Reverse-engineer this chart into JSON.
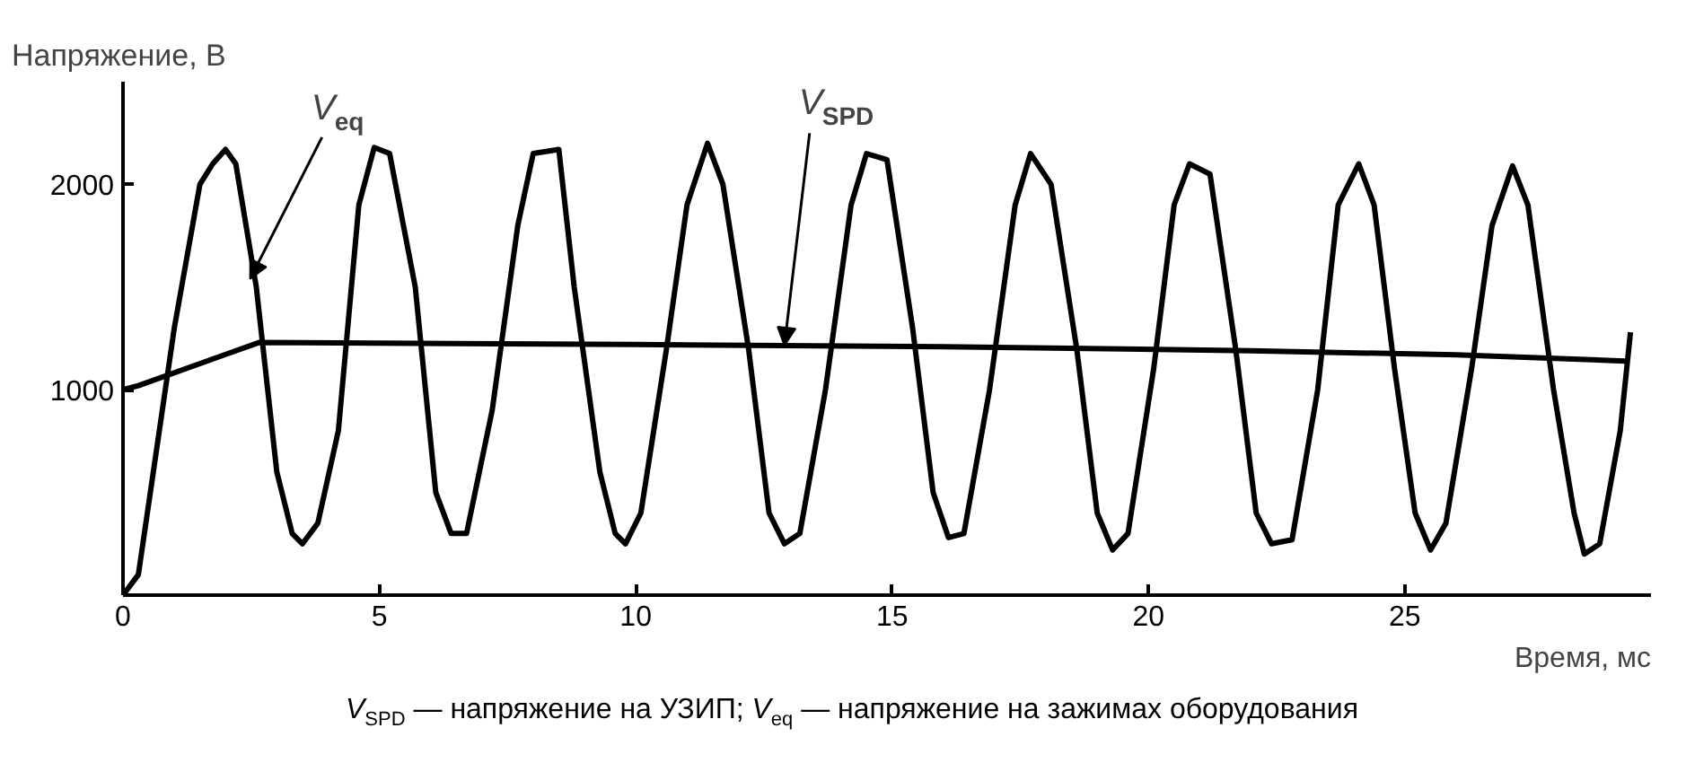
{
  "chart_data": {
    "type": "line",
    "ylabel": "Напряжение, В",
    "xlabel": "Время, мс",
    "xlim": [
      0,
      29.8
    ],
    "ylim": [
      0,
      2500
    ],
    "xticks": [
      0,
      5,
      10,
      15,
      20,
      25
    ],
    "yticks": [
      1000,
      2000
    ],
    "grid": false,
    "marker": "none",
    "line_style": "solid",
    "series": [
      {
        "color": "#000000",
        "x": [
          0,
          0.3,
          1.0,
          1.5,
          1.75,
          2.0,
          2.2,
          2.6,
          3.0,
          3.3,
          3.5,
          3.8,
          4.2,
          4.6,
          4.9,
          5.2,
          5.7,
          6.1,
          6.4,
          6.7,
          7.2,
          7.7,
          8.0,
          8.5,
          8.8,
          9.3,
          9.6,
          9.8,
          10.1,
          10.6,
          11.0,
          11.4,
          11.7,
          12.2,
          12.6,
          12.9,
          13.2,
          13.7,
          14.2,
          14.5,
          14.9,
          15.4,
          15.8,
          16.1,
          16.4,
          16.9,
          17.4,
          17.7,
          18.1,
          18.6,
          19.0,
          19.3,
          19.6,
          20.1,
          20.5,
          20.8,
          21.2,
          21.7,
          22.1,
          22.4,
          22.8,
          23.3,
          23.7,
          24.1,
          24.4,
          24.8,
          25.2,
          25.5,
          25.8,
          26.3,
          26.7,
          27.1,
          27.4,
          27.9,
          28.3,
          28.5,
          28.8,
          29.2,
          29.4
        ],
        "values": [
          0,
          100,
          1300,
          2000,
          2100,
          2170,
          2100,
          1500,
          600,
          300,
          250,
          350,
          800,
          1900,
          2180,
          2150,
          1500,
          500,
          300,
          300,
          900,
          1800,
          2150,
          2170,
          1500,
          600,
          300,
          250,
          400,
          1200,
          1900,
          2200,
          2000,
          1200,
          400,
          250,
          300,
          1000,
          1900,
          2150,
          2120,
          1300,
          500,
          280,
          300,
          1000,
          1900,
          2150,
          2000,
          1200,
          400,
          220,
          300,
          1100,
          1900,
          2100,
          2050,
          1200,
          400,
          250,
          270,
          1000,
          1900,
          2100,
          1900,
          1100,
          400,
          220,
          350,
          1100,
          1800,
          2090,
          1900,
          1000,
          400,
          200,
          250,
          800,
          1280
        ]
      },
      {
        "color": "#000000",
        "x": [
          0,
          0.3,
          2.65,
          10,
          16,
          22,
          26,
          29.3
        ],
        "values": [
          1000,
          1020,
          1230,
          1220,
          1210,
          1190,
          1170,
          1140
        ]
      }
    ],
    "annotations": [
      {
        "text": "V$_{eq}$",
        "x": 2.48,
        "y": 1540
      },
      {
        "text": "V$_{SPD}$",
        "x": 12.9,
        "y": 1215
      },
      "V$_{SPD}$ — напряжение на УЗИП;  V$_{eq}$ — напряжение на зажимах оборудования"
    ]
  }
}
